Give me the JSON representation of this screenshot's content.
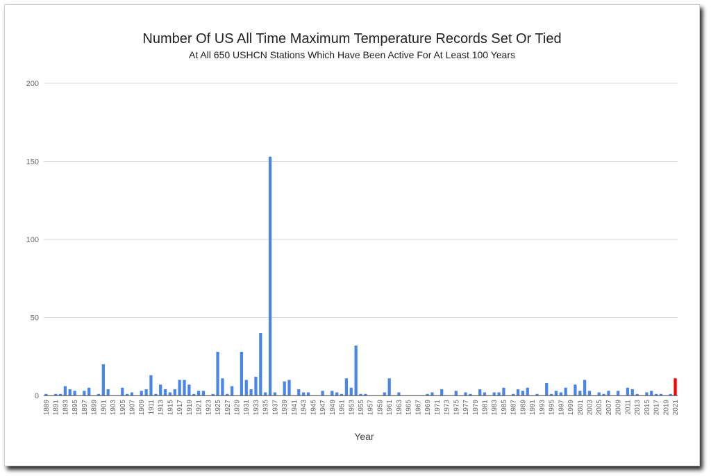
{
  "chart_data": {
    "type": "bar",
    "title": "Number Of US All Time Maximum Temperature Records Set Or Tied",
    "subtitle": "At All 650 USHCN Stations Which Have Been Active For At Least 100 Years",
    "xlabel": "Year",
    "ylabel": "",
    "ylim": [
      0,
      200
    ],
    "yticks": [
      0,
      50,
      100,
      150,
      200
    ],
    "grid": true,
    "legend": "none",
    "xtick_labels": [
      "1889",
      "1891",
      "1893",
      "1895",
      "1897",
      "1899",
      "1901",
      "1903",
      "1905",
      "1907",
      "1909",
      "1911",
      "1913",
      "1915",
      "1917",
      "1919",
      "1921",
      "1923",
      "1925",
      "1927",
      "1929",
      "1931",
      "1933",
      "1935",
      "1937",
      "1939",
      "1941",
      "1943",
      "1945",
      "1947",
      "1949",
      "1951",
      "1953",
      "1955",
      "1957",
      "1959",
      "1961",
      "1963",
      "1965",
      "1967",
      "1969",
      "1971",
      "1973",
      "1975",
      "1977",
      "1979",
      "1981",
      "1983",
      "1985",
      "1987",
      "1989",
      "1991",
      "1993",
      "1995",
      "1997",
      "1999",
      "2001",
      "2003",
      "2005",
      "2007",
      "2009",
      "2011",
      "2013",
      "2015",
      "2017",
      "2019",
      "2021"
    ],
    "categories": [
      "1889",
      "1890",
      "1891",
      "1892",
      "1893",
      "1894",
      "1895",
      "1896",
      "1897",
      "1898",
      "1899",
      "1900",
      "1901",
      "1902",
      "1903",
      "1904",
      "1905",
      "1906",
      "1907",
      "1908",
      "1909",
      "1910",
      "1911",
      "1912",
      "1913",
      "1914",
      "1915",
      "1916",
      "1917",
      "1918",
      "1919",
      "1920",
      "1921",
      "1922",
      "1923",
      "1924",
      "1925",
      "1926",
      "1927",
      "1928",
      "1929",
      "1930",
      "1931",
      "1932",
      "1933",
      "1934",
      "1935",
      "1936",
      "1937",
      "1938",
      "1939",
      "1940",
      "1941",
      "1942",
      "1943",
      "1944",
      "1945",
      "1946",
      "1947",
      "1948",
      "1949",
      "1950",
      "1951",
      "1952",
      "1953",
      "1954",
      "1955",
      "1956",
      "1957",
      "1958",
      "1959",
      "1960",
      "1961",
      "1962",
      "1963",
      "1964",
      "1965",
      "1966",
      "1967",
      "1968",
      "1969",
      "1970",
      "1971",
      "1972",
      "1973",
      "1974",
      "1975",
      "1976",
      "1977",
      "1978",
      "1979",
      "1980",
      "1981",
      "1982",
      "1983",
      "1984",
      "1985",
      "1986",
      "1987",
      "1988",
      "1989",
      "1990",
      "1991",
      "1992",
      "1993",
      "1994",
      "1995",
      "1996",
      "1997",
      "1998",
      "1999",
      "2000",
      "2001",
      "2002",
      "2003",
      "2004",
      "2005",
      "2006",
      "2007",
      "2008",
      "2009",
      "2010",
      "2011",
      "2012",
      "2013",
      "2014",
      "2015",
      "2016",
      "2017",
      "2018",
      "2019",
      "2020",
      "2021"
    ],
    "values": [
      1,
      0,
      1,
      1,
      6,
      4,
      3,
      0,
      3,
      5,
      0,
      1,
      20,
      4,
      0,
      0,
      5,
      1,
      2,
      0,
      3,
      4,
      13,
      1,
      7,
      4,
      2,
      4,
      10,
      10,
      7,
      1,
      3,
      3,
      0,
      1,
      28,
      11,
      1,
      6,
      0,
      28,
      10,
      4,
      12,
      40,
      2,
      153,
      2,
      0,
      9,
      10,
      0,
      4,
      2,
      2,
      0,
      0,
      3,
      0,
      3,
      2,
      1,
      11,
      5,
      32,
      1,
      1,
      0,
      0,
      0,
      2,
      11,
      0,
      2,
      0,
      0,
      0,
      0,
      0,
      1,
      2,
      0,
      4,
      0,
      0,
      3,
      0,
      2,
      1,
      0,
      4,
      2,
      0,
      2,
      2,
      5,
      0,
      1,
      4,
      3,
      5,
      0,
      1,
      0,
      8,
      1,
      3,
      2,
      5,
      0,
      7,
      3,
      10,
      3,
      0,
      2,
      1,
      3,
      0,
      3,
      0,
      5,
      4,
      1,
      0,
      2,
      3,
      1,
      1,
      0,
      1,
      11
    ],
    "colors": {
      "bar": "#4a86e8",
      "highlight": "#ff0000",
      "grid": "#d6d6d6",
      "axis": "#333333",
      "tick_text": "#666666",
      "title_text": "#222222"
    },
    "highlight_category": "2021"
  }
}
